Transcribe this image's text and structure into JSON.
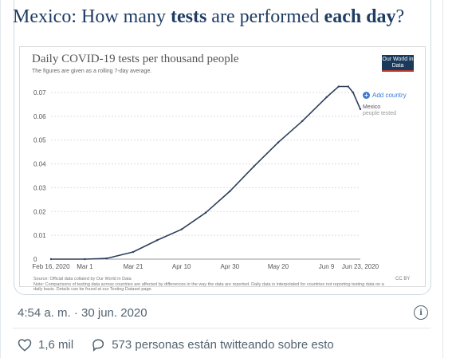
{
  "tweet": {
    "headline_part1": "Mexico: How many ",
    "headline_bold1": "tests",
    "headline_part2": " are performed ",
    "headline_bold2": "each day",
    "headline_part3": "?",
    "timestamp": "4:54 a. m. · 30 jun. 2020",
    "likes_label": "1,6 mil",
    "conversation_label": "573 personas están twitteando sobre esto"
  },
  "chart": {
    "logo_text": "Our World in Data",
    "add_country": "Add country",
    "source": "Source: Official data collated by Our World in Data",
    "note": "Note: Comparisons of testing data across countries are affected by differences in the way the data are reported. Daily data is interpolated for countries not reporting testing data on a daily basis. Details can be found at our Testing Dataset page.",
    "license": "CC BY"
  },
  "colors": {
    "line": "#2e3e5c",
    "accent": "#3a7bd5",
    "headline": "#1f3c63"
  },
  "chart_data": {
    "type": "line",
    "title": "Daily COVID-19 tests per thousand people",
    "subtitle": "The figures are given as a rolling 7-day average.",
    "xlabel": "",
    "ylabel": "",
    "x_ticks": [
      "Feb 16, 2020",
      "Mar 1",
      "Mar 21",
      "Apr 10",
      "Apr 30",
      "May 20",
      "Jun 9",
      "Jun 23, 2020"
    ],
    "y_ticks": [
      "0",
      "0.01",
      "0.02",
      "0.03",
      "0.04",
      "0.05",
      "0.06",
      "0.07"
    ],
    "ylim": [
      0,
      0.07
    ],
    "grid": true,
    "series": [
      {
        "name": "Mexico",
        "sublabel": "people tested",
        "x": [
          "2020-02-16",
          "2020-03-01",
          "2020-03-10",
          "2020-03-21",
          "2020-03-31",
          "2020-04-10",
          "2020-04-20",
          "2020-04-30",
          "2020-05-10",
          "2020-05-20",
          "2020-05-30",
          "2020-06-09",
          "2020-06-14",
          "2020-06-18",
          "2020-06-20",
          "2020-06-23"
        ],
        "values": [
          0,
          0,
          0.0003,
          0.003,
          0.008,
          0.0125,
          0.0195,
          0.0285,
          0.039,
          0.049,
          0.058,
          0.068,
          0.0725,
          0.0725,
          0.07,
          0.063
        ]
      }
    ]
  }
}
